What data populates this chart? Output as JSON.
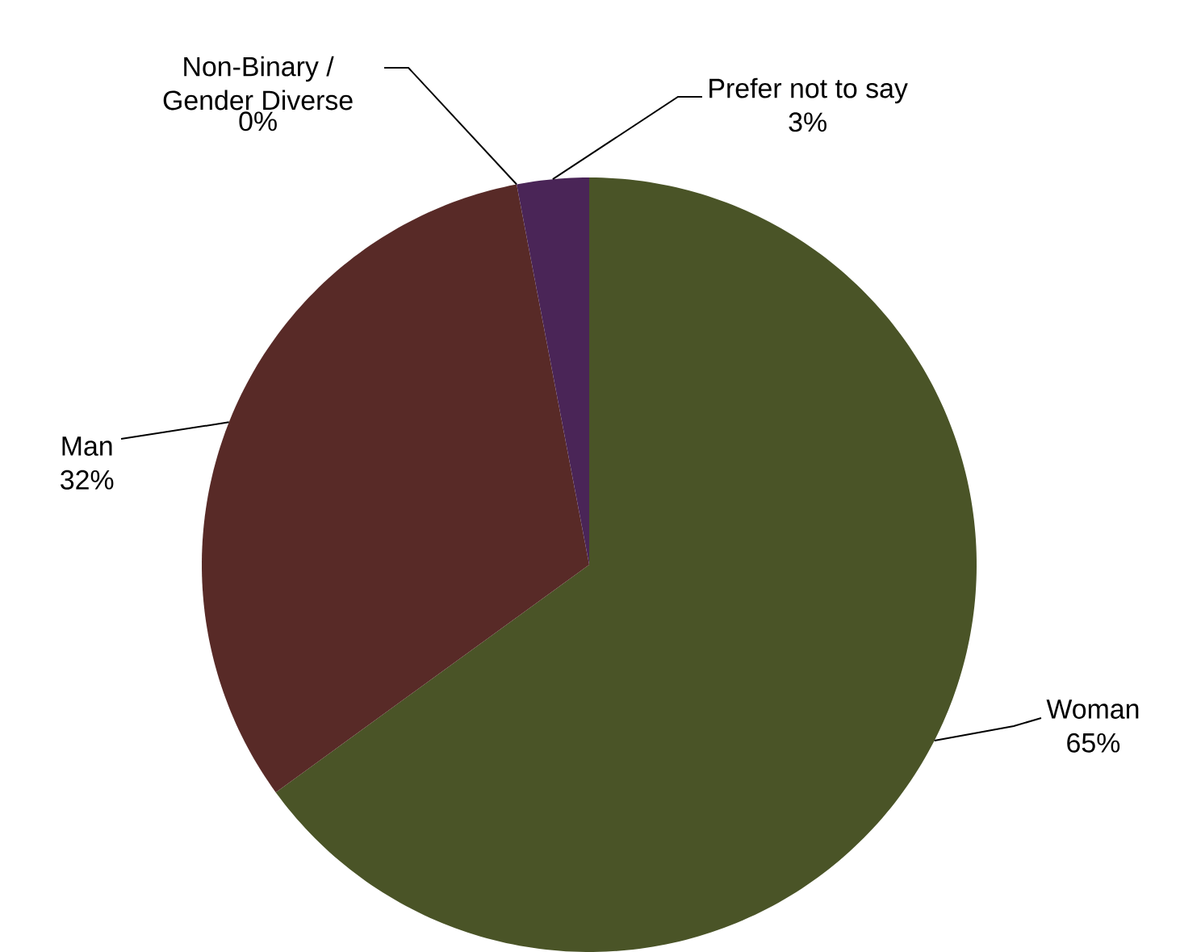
{
  "chart_data": {
    "type": "pie",
    "categories": [
      "Woman",
      "Man",
      "Non-Binary / Gender Diverse",
      "Prefer not to say"
    ],
    "values": [
      65,
      32,
      0,
      3
    ],
    "colors": [
      "#4a5427",
      "#582a27",
      "#3a3f6a",
      "#4a2557"
    ],
    "value_labels": [
      "65%",
      "32%",
      "0%",
      "3%"
    ]
  }
}
